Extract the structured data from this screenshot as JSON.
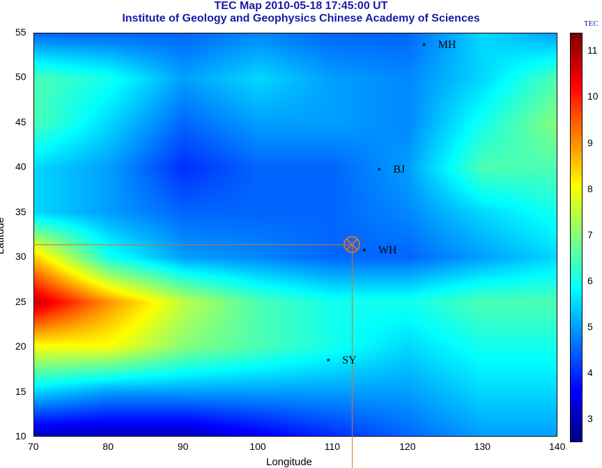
{
  "header": {
    "title": "TEC Map 2010-05-18 17:45:00 UT",
    "subtitle": "Institute of Geology and Geophysics Chinese Academy of Sciences"
  },
  "chart_data": {
    "type": "heatmap",
    "xlabel": "Longitude",
    "ylabel": "Latitude",
    "xlim": [
      70,
      140
    ],
    "ylim": [
      10,
      55
    ],
    "xticks": [
      "70",
      "80",
      "90",
      "100",
      "110",
      "120",
      "130",
      "140"
    ],
    "yticks": [
      "10",
      "15",
      "20",
      "25",
      "30",
      "35",
      "40",
      "45",
      "50",
      "55"
    ],
    "colorbar": {
      "title": "TEC",
      "range": [
        2.5,
        11.4
      ],
      "ticks": [
        "3",
        "4",
        "5",
        "6",
        "7",
        "8",
        "9",
        "10",
        "11"
      ],
      "colormap": "jet"
    },
    "grid_lons": [
      70,
      80,
      90,
      100,
      110,
      120,
      130,
      140
    ],
    "grid_lats": [
      55,
      50,
      45,
      40,
      35,
      30,
      25,
      20,
      15,
      10
    ],
    "tec": [
      [
        4.5,
        4.5,
        4.5,
        4.8,
        4.5,
        4.5,
        5.5,
        5.0
      ],
      [
        6.5,
        6.0,
        5.0,
        5.5,
        5.0,
        4.8,
        5.5,
        6.5
      ],
      [
        6.5,
        5.5,
        4.5,
        5.0,
        5.0,
        4.8,
        6.0,
        7.0
      ],
      [
        5.5,
        5.0,
        4.0,
        4.5,
        4.5,
        5.0,
        6.5,
        6.5
      ],
      [
        5.5,
        5.0,
        4.5,
        4.5,
        4.5,
        4.8,
        5.5,
        6.0
      ],
      [
        8.5,
        6.0,
        5.0,
        4.8,
        4.5,
        4.5,
        5.0,
        5.5
      ],
      [
        10.8,
        9.0,
        7.5,
        6.5,
        6.0,
        6.0,
        6.5,
        6.5
      ],
      [
        8.0,
        8.0,
        7.0,
        6.5,
        6.0,
        5.5,
        6.0,
        6.0
      ],
      [
        5.5,
        5.0,
        5.0,
        5.0,
        5.0,
        5.0,
        5.5,
        5.5
      ],
      [
        3.0,
        3.0,
        3.0,
        3.5,
        4.0,
        4.5,
        5.0,
        5.0
      ]
    ],
    "stations": [
      {
        "name": "MH",
        "lon": 122.2,
        "lat": 53.5
      },
      {
        "name": "BJ",
        "lon": 116.2,
        "lat": 39.6
      },
      {
        "name": "WH",
        "lon": 114.2,
        "lat": 30.6
      },
      {
        "name": "SY",
        "lon": 109.4,
        "lat": 18.4
      }
    ],
    "crosshair": {
      "lon": 112.5,
      "lat": 31.4,
      "color": "#e07020"
    }
  }
}
